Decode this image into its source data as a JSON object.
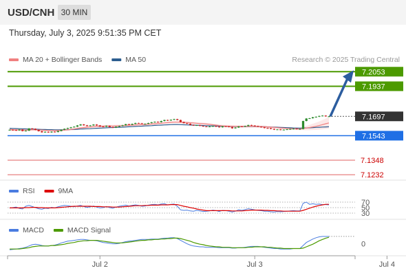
{
  "header": {
    "symbol": "USD/CNH",
    "timeframe": "30 MIN"
  },
  "datetime": "Thursday, July 3, 2025 9:51:35 PM CET",
  "colors": {
    "target": "#4c9a00",
    "pivot": "#1f6fe5",
    "support": "#e06060",
    "price": "#333333",
    "ma20": "#f08080",
    "ma50": "#2c5d8f",
    "rsi": "#4a7ce0",
    "rsi_ma": "#dd0000",
    "macd": "#4a7ce0",
    "macd_signal": "#4c9a00",
    "arrow": "#2c5d9f"
  },
  "chart_data": [
    {
      "type": "candlestick",
      "title": "",
      "legend": [
        {
          "label": "MA 20 + Bollinger Bands",
          "color": "#f08080"
        },
        {
          "label": "MA 50",
          "color": "#2c5d8f"
        }
      ],
      "credit": "Research © 2025 Trading Central",
      "x_ticks": [
        "Jul 2",
        "Jul 3",
        "Jul 4"
      ],
      "x_tick_index": [
        28,
        76,
        117
      ],
      "ylim": [
        7.1189,
        7.2186
      ],
      "levels": [
        {
          "label": "7.2053",
          "value": 7.2053,
          "kind": "target"
        },
        {
          "label": "7.1937",
          "value": 7.1937,
          "kind": "target"
        },
        {
          "label": "7.1697",
          "value": 7.1697,
          "kind": "price"
        },
        {
          "label": "7.1543",
          "value": 7.1543,
          "kind": "pivot"
        },
        {
          "label": "7.1348",
          "value": 7.1348,
          "kind": "support"
        },
        {
          "label": "7.1232",
          "value": 7.1232,
          "kind": "support"
        }
      ],
      "close": [
        7.159,
        7.1588,
        7.1585,
        7.1592,
        7.158,
        7.1583,
        7.1601,
        7.1598,
        7.1589,
        7.1579,
        7.157,
        7.1574,
        7.1569,
        7.1575,
        7.1572,
        7.158,
        7.159,
        7.1598,
        7.1604,
        7.161,
        7.1615,
        7.1625,
        7.1633,
        7.1626,
        7.162,
        7.1625,
        7.1632,
        7.1625,
        7.1616,
        7.1615,
        7.1622,
        7.1612,
        7.1607,
        7.1615,
        7.162,
        7.1626,
        7.1635,
        7.163,
        7.1637,
        7.1644,
        7.1642,
        7.1638,
        7.1638,
        7.1644,
        7.165,
        7.1654,
        7.1651,
        7.166,
        7.1668,
        7.1664,
        7.167,
        7.1675,
        7.1668,
        7.1652,
        7.1643,
        7.1638,
        7.1629,
        7.1624,
        7.1627,
        7.1621,
        7.1617,
        7.1616,
        7.1616,
        7.162,
        7.1615,
        7.161,
        7.1618,
        7.1617,
        7.1612,
        7.1602,
        7.1608,
        7.1617,
        7.1615,
        7.162,
        7.1628,
        7.1624,
        7.162,
        7.1615,
        7.161,
        7.1604,
        7.1603,
        7.1597,
        7.1591,
        7.1593,
        7.1589,
        7.1591,
        7.1594,
        7.1596,
        7.1599,
        7.1596,
        7.1596,
        7.166,
        7.168,
        7.1682,
        7.169,
        7.1694,
        7.17,
        7.1703,
        7.1697,
        7.1697
      ],
      "ma20": [
        7.1592,
        7.1591,
        7.159,
        7.159,
        7.1589,
        7.1588,
        7.1589,
        7.159,
        7.159,
        7.1589,
        7.1588,
        7.1586,
        7.1585,
        7.1585,
        7.1584,
        7.1584,
        7.1586,
        7.1588,
        7.159,
        7.1593,
        7.1596,
        7.1601,
        7.1605,
        7.1608,
        7.161,
        7.1612,
        7.1615,
        7.1617,
        7.1618,
        7.1619,
        7.162,
        7.162,
        7.162,
        7.1621,
        7.1622,
        7.1623,
        7.1625,
        7.1626,
        7.1627,
        7.1629,
        7.163,
        7.1631,
        7.1632,
        7.1634,
        7.1636,
        7.1638,
        7.164,
        7.1642,
        7.1645,
        7.1647,
        7.1649,
        7.1651,
        7.1651,
        7.165,
        7.1649,
        7.1648,
        7.1646,
        7.1644,
        7.1642,
        7.164,
        7.1638,
        7.1636,
        7.1633,
        7.163,
        7.1627,
        7.1624,
        7.1621,
        7.162,
        7.1619,
        7.1618,
        7.1617,
        7.1617,
        7.1617,
        7.1617,
        7.1617,
        7.1617,
        7.1617,
        7.1616,
        7.1615,
        7.1614,
        7.1613,
        7.1611,
        7.1609,
        7.1607,
        7.1605,
        7.1603,
        7.1601,
        7.16,
        7.1599,
        7.1598,
        7.1597,
        7.16,
        7.1604,
        7.1608,
        7.1613,
        7.1618,
        7.1624,
        7.1631,
        7.1638,
        7.1645
      ],
      "ma50": [
        7.1602,
        7.1601,
        7.16,
        7.1599,
        7.1598,
        7.1597,
        7.1596,
        7.1596,
        7.1595,
        7.1594,
        7.1593,
        7.1592,
        7.1591,
        7.1591,
        7.159,
        7.159,
        7.159,
        7.159,
        7.1591,
        7.1592,
        7.1593,
        7.1594,
        7.1596,
        7.1597,
        7.1598,
        7.1599,
        7.1601,
        7.1602,
        7.1603,
        7.1604,
        7.1606,
        7.1607,
        7.1608,
        7.1609,
        7.161,
        7.1611,
        7.1613,
        7.1614,
        7.1615,
        7.1617,
        7.1618,
        7.1619,
        7.1621,
        7.1622,
        7.1623,
        7.1625,
        7.1626,
        7.1627,
        7.1629,
        7.163,
        7.1631,
        7.1632,
        7.1632,
        7.1631,
        7.163,
        7.1629,
        7.1628,
        7.1627,
        7.1626,
        7.1625,
        7.1624,
        7.1623,
        7.1622,
        7.1621,
        7.162,
        7.1619,
        7.1619,
        7.1618,
        7.1617,
        7.1617,
        7.1616,
        7.1616,
        7.1616,
        7.1616,
        7.1616,
        7.1616,
        7.1616,
        7.1615,
        7.1615,
        7.1614,
        7.1613,
        7.1612,
        7.1611,
        7.161,
        7.1609,
        7.1608,
        7.1607,
        7.1606,
        7.1605,
        7.1604,
        7.1603,
        7.1604,
        7.1605,
        7.1606,
        7.1607,
        7.1609,
        7.161,
        7.1612,
        7.1613,
        7.1614
      ],
      "forecast": {
        "from_index": 99,
        "from_value": 7.1697,
        "to_value": 7.2053
      }
    },
    {
      "type": "line",
      "title": "",
      "legend": [
        {
          "label": "RSI",
          "color": "#4a7ce0"
        },
        {
          "label": "9MA",
          "color": "#dd0000"
        }
      ],
      "y_ticks": [
        "70",
        "50",
        "30"
      ],
      "y_tick_values": [
        70,
        50,
        30
      ],
      "ylim": [
        10,
        90
      ],
      "rsi": [
        48,
        50,
        52,
        47,
        45,
        55,
        58,
        54,
        50,
        46,
        44,
        48,
        47,
        51,
        49,
        53,
        56,
        58,
        57,
        55,
        53,
        56,
        58,
        54,
        51,
        53,
        56,
        52,
        49,
        50,
        54,
        50,
        48,
        52,
        55,
        57,
        59,
        56,
        58,
        60,
        58,
        55,
        56,
        59,
        61,
        62,
        60,
        63,
        64,
        60,
        62,
        63,
        55,
        42,
        40,
        41,
        38,
        37,
        40,
        38,
        36,
        37,
        38,
        41,
        39,
        36,
        40,
        39,
        37,
        34,
        37,
        42,
        40,
        43,
        46,
        44,
        42,
        40,
        39,
        37,
        37,
        35,
        34,
        36,
        35,
        36,
        37,
        38,
        39,
        38,
        38,
        66,
        70,
        62,
        64,
        62,
        63,
        61,
        61,
        60
      ],
      "rsi_ma": [
        49,
        49,
        49,
        49,
        49,
        50,
        50,
        51,
        51,
        50,
        50,
        49,
        49,
        49,
        49,
        50,
        51,
        52,
        53,
        54,
        55,
        55,
        55,
        55,
        55,
        55,
        54,
        54,
        54,
        53,
        53,
        53,
        52,
        52,
        52,
        53,
        54,
        55,
        56,
        57,
        57,
        57,
        58,
        58,
        59,
        59,
        59,
        60,
        60,
        60,
        61,
        61,
        61,
        58,
        55,
        53,
        50,
        48,
        45,
        43,
        41,
        39,
        39,
        39,
        39,
        39,
        39,
        39,
        39,
        38,
        38,
        38,
        38,
        39,
        40,
        41,
        41,
        41,
        41,
        40,
        40,
        39,
        39,
        38,
        38,
        37,
        37,
        37,
        37,
        37,
        37,
        40,
        44,
        48,
        52,
        55,
        58,
        60,
        62,
        62
      ]
    },
    {
      "type": "line",
      "title": "",
      "legend": [
        {
          "label": "MACD",
          "color": "#4a7ce0"
        },
        {
          "label": "MACD Signal",
          "color": "#4c9a00"
        }
      ],
      "y_ticks": [
        "0"
      ],
      "y_tick_values": [
        0
      ],
      "ylim": [
        -0.0026,
        0.002
      ],
      "macd": [
        -0.0014,
        -0.0013,
        -0.0012,
        -0.0011,
        -0.001,
        -0.0008,
        -0.0005,
        -0.0002,
        -0.0001,
        -0.0002,
        -0.0004,
        -0.0005,
        -0.0005,
        -0.0004,
        -0.0003,
        -0.0001,
        0.0002,
        0.0004,
        0.0006,
        0.0007,
        0.0008,
        0.0009,
        0.001,
        0.001,
        0.0009,
        0.0008,
        0.0008,
        0.0007,
        0.0005,
        0.0003,
        0.0002,
        0.0001,
        0.0,
        0.0,
        0.0001,
        0.0003,
        0.0005,
        0.0006,
        0.0007,
        0.0008,
        0.0009,
        0.001,
        0.001,
        0.001,
        0.0011,
        0.0011,
        0.0011,
        0.0012,
        0.0013,
        0.0013,
        0.0014,
        0.0014,
        0.0012,
        0.0008,
        0.0004,
        0.0,
        -0.0003,
        -0.0005,
        -0.0006,
        -0.0007,
        -0.0007,
        -0.0008,
        -0.0008,
        -0.0008,
        -0.0008,
        -0.0009,
        -0.0009,
        -0.0009,
        -0.0009,
        -0.001,
        -0.001,
        -0.0009,
        -0.0009,
        -0.0008,
        -0.0007,
        -0.0006,
        -0.0006,
        -0.0006,
        -0.0007,
        -0.0008,
        -0.0009,
        -0.001,
        -0.0011,
        -0.0011,
        -0.0012,
        -0.0012,
        -0.0012,
        -0.0012,
        -0.0011,
        -0.0011,
        -0.0011,
        -0.0004,
        0.0003,
        0.0007,
        0.0011,
        0.0014,
        0.0016,
        0.0017,
        0.0017,
        0.0017
      ],
      "macd_signal": [
        -0.0012,
        -0.0012,
        -0.0012,
        -0.0012,
        -0.0011,
        -0.001,
        -0.0009,
        -0.0007,
        -0.0006,
        -0.0005,
        -0.0005,
        -0.0005,
        -0.0005,
        -0.0004,
        -0.0004,
        -0.0003,
        -0.0002,
        -0.0001,
        0.0001,
        0.0002,
        0.0003,
        0.0005,
        0.0006,
        0.0007,
        0.0007,
        0.0008,
        0.0008,
        0.0008,
        0.0007,
        0.0006,
        0.0005,
        0.0004,
        0.0003,
        0.0002,
        0.0002,
        0.0002,
        0.0003,
        0.0004,
        0.0005,
        0.0006,
        0.0007,
        0.0008,
        0.0008,
        0.0009,
        0.0009,
        0.001,
        0.001,
        0.0011,
        0.0011,
        0.0012,
        0.0012,
        0.0013,
        0.0013,
        0.0012,
        0.001,
        0.0008,
        0.0006,
        0.0003,
        0.0001,
        -0.0001,
        -0.0002,
        -0.0004,
        -0.0005,
        -0.0006,
        -0.0007,
        -0.0007,
        -0.0008,
        -0.0008,
        -0.0008,
        -0.0009,
        -0.0009,
        -0.0009,
        -0.0009,
        -0.0009,
        -0.0008,
        -0.0008,
        -0.0007,
        -0.0007,
        -0.0007,
        -0.0007,
        -0.0008,
        -0.0008,
        -0.0009,
        -0.001,
        -0.001,
        -0.0011,
        -0.0011,
        -0.0011,
        -0.0011,
        -0.0011,
        -0.0011,
        -0.001,
        -0.0007,
        -0.0004,
        -0.0001,
        0.0003,
        0.0007,
        0.001,
        0.0013,
        0.0015
      ]
    }
  ]
}
